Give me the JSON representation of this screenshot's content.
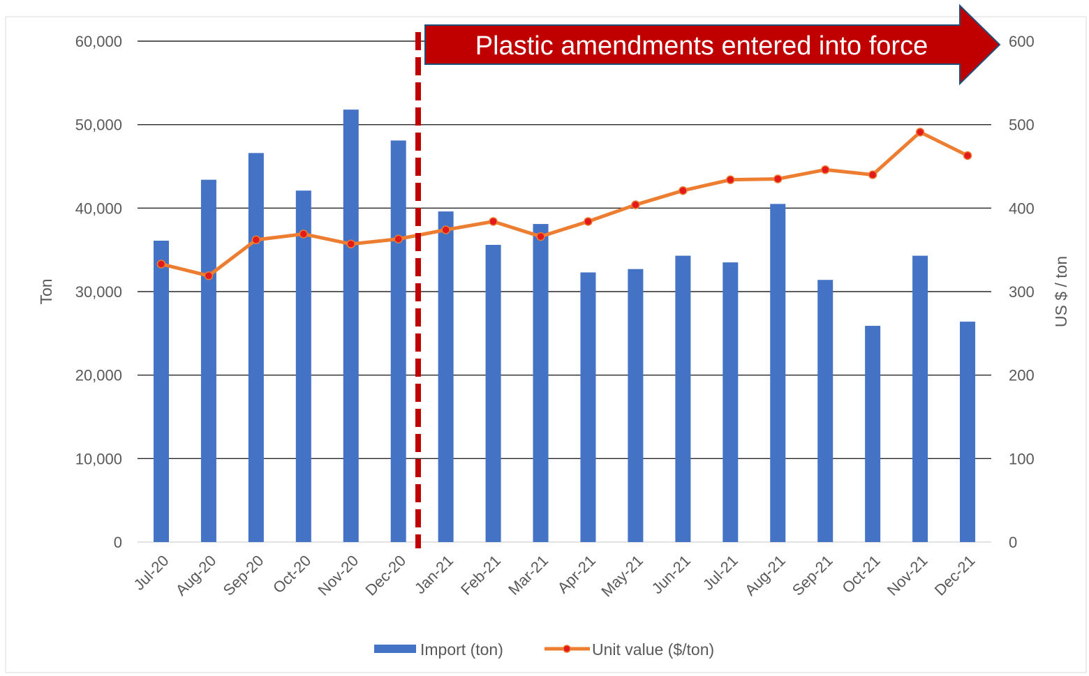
{
  "chart_data": {
    "type": "bar",
    "categories": [
      "Jul-20",
      "Aug-20",
      "Sep-20",
      "Oct-20",
      "Nov-20",
      "Dec-20",
      "Jan-21",
      "Feb-21",
      "Mar-21",
      "Apr-21",
      "May-21",
      "Jun-21",
      "Jul-21",
      "Aug-21",
      "Sep-21",
      "Oct-21",
      "Nov-21",
      "Dec-21"
    ],
    "series": [
      {
        "name": "Import (ton)",
        "type": "bar",
        "axis": "left",
        "color": "#4472C4",
        "values": [
          36100,
          43400,
          46600,
          42100,
          51800,
          48100,
          39600,
          35600,
          38100,
          32300,
          32700,
          34300,
          33500,
          40500,
          31400,
          25900,
          34300,
          26400
        ]
      },
      {
        "name": "Unit value ($/ton)",
        "type": "line",
        "axis": "right",
        "color": "#ED7D31",
        "marker_color": "#E31A1C",
        "values": [
          333,
          319,
          362,
          369,
          357,
          363,
          374,
          384,
          366,
          384,
          404,
          421,
          434,
          435,
          446,
          440,
          491,
          463
        ]
      }
    ],
    "left_axis": {
      "label": "Ton",
      "ylim": [
        0,
        60000
      ],
      "ticks": [
        "0",
        "10,000",
        "20,000",
        "30,000",
        "40,000",
        "50,000",
        "60,000"
      ]
    },
    "right_axis": {
      "label": "US $ / ton",
      "ylim": [
        0,
        600
      ],
      "ticks": [
        "0",
        "100",
        "200",
        "300",
        "400",
        "500",
        "600"
      ]
    },
    "grid": true,
    "legend": "bottom",
    "annotation": {
      "text": "Plastic amendments entered into force",
      "between": [
        "Dec-20",
        "Jan-21"
      ],
      "line_color": "#C00000",
      "arrow_color": "#C00000"
    }
  }
}
